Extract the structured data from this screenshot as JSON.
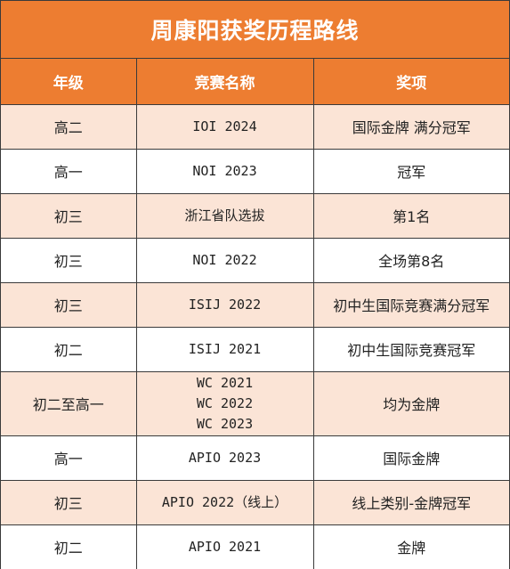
{
  "title": "周康阳获奖历程路线",
  "headers": {
    "grade": "年级",
    "contest": "竞赛名称",
    "award": "奖项"
  },
  "rows": [
    {
      "grade": "高二",
      "contest": [
        "IOI 2024"
      ],
      "award": "国际金牌 满分冠军"
    },
    {
      "grade": "高一",
      "contest": [
        "NOI 2023"
      ],
      "award": "冠军"
    },
    {
      "grade": "初三",
      "contest": [
        "浙江省队选拔"
      ],
      "award": "第1名"
    },
    {
      "grade": "初三",
      "contest": [
        "NOI 2022"
      ],
      "award": "全场第8名"
    },
    {
      "grade": "初三",
      "contest": [
        "ISIJ 2022"
      ],
      "award": "初中生国际竞赛满分冠军"
    },
    {
      "grade": "初二",
      "contest": [
        "ISIJ 2021"
      ],
      "award": "初中生国际竞赛冠军"
    },
    {
      "grade": "初二至高一",
      "contest": [
        "WC 2021",
        "WC 2022",
        "WC 2023"
      ],
      "award": "均为金牌"
    },
    {
      "grade": "高一",
      "contest": [
        "APIO 2023"
      ],
      "award": "国际金牌"
    },
    {
      "grade": "初三",
      "contest": [
        "APIO 2022（线上）"
      ],
      "award": "线上类别-金牌冠军"
    },
    {
      "grade": "初二",
      "contest": [
        "APIO 2021"
      ],
      "award": "金牌"
    }
  ],
  "colors": {
    "header_bg": "#ed7d31",
    "header_text": "#ffffff",
    "band_bg": "#fbe4d6",
    "border": "#3a3a3a"
  }
}
